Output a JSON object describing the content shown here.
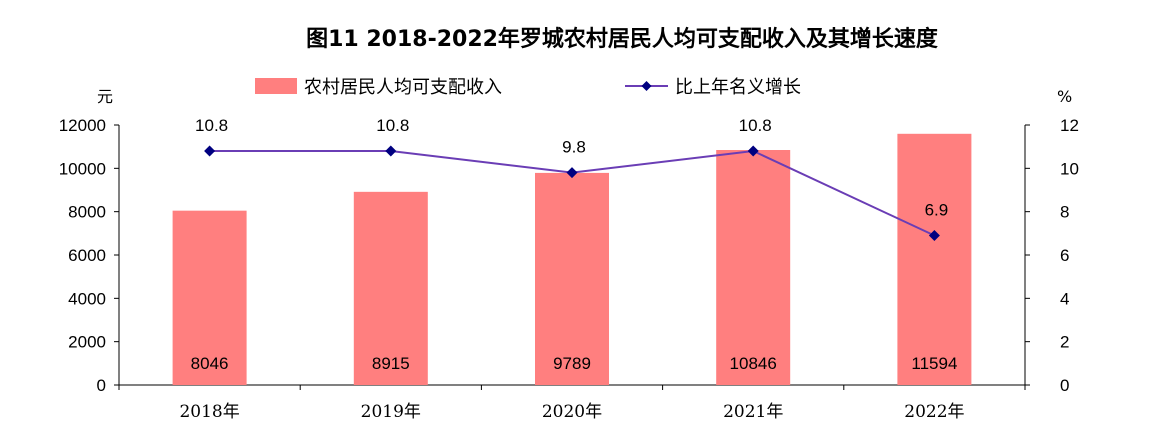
{
  "chart_data": {
    "type": "bar",
    "title": "图11 2018-2022年罗城农村居民人均可支配收入及其增长速度",
    "categories": [
      "2018年",
      "2019年",
      "2020年",
      "2021年",
      "2022年"
    ],
    "series": [
      {
        "name": "农村居民人均可支配收入",
        "type": "bar",
        "axis": "left",
        "color": "#ff7f7f",
        "values": [
          8046,
          8915,
          9789,
          10846,
          11594
        ]
      },
      {
        "name": "比上年名义增长",
        "type": "line",
        "axis": "right",
        "color": "#6a3db5",
        "marker_color": "#000080",
        "values": [
          10.8,
          10.8,
          9.8,
          10.8,
          6.9
        ]
      }
    ],
    "ylabel_left": "元",
    "ylabel_right": "%",
    "ylim_left": [
      0,
      12000
    ],
    "ylim_right": [
      0,
      12
    ],
    "yticks_left": [
      "0",
      "2000",
      "4000",
      "6000",
      "8000",
      "10000",
      "12000"
    ],
    "yticks_right": [
      "0",
      "2",
      "4",
      "6",
      "8",
      "10",
      "12"
    ],
    "grid": false,
    "legend_position": "top"
  }
}
